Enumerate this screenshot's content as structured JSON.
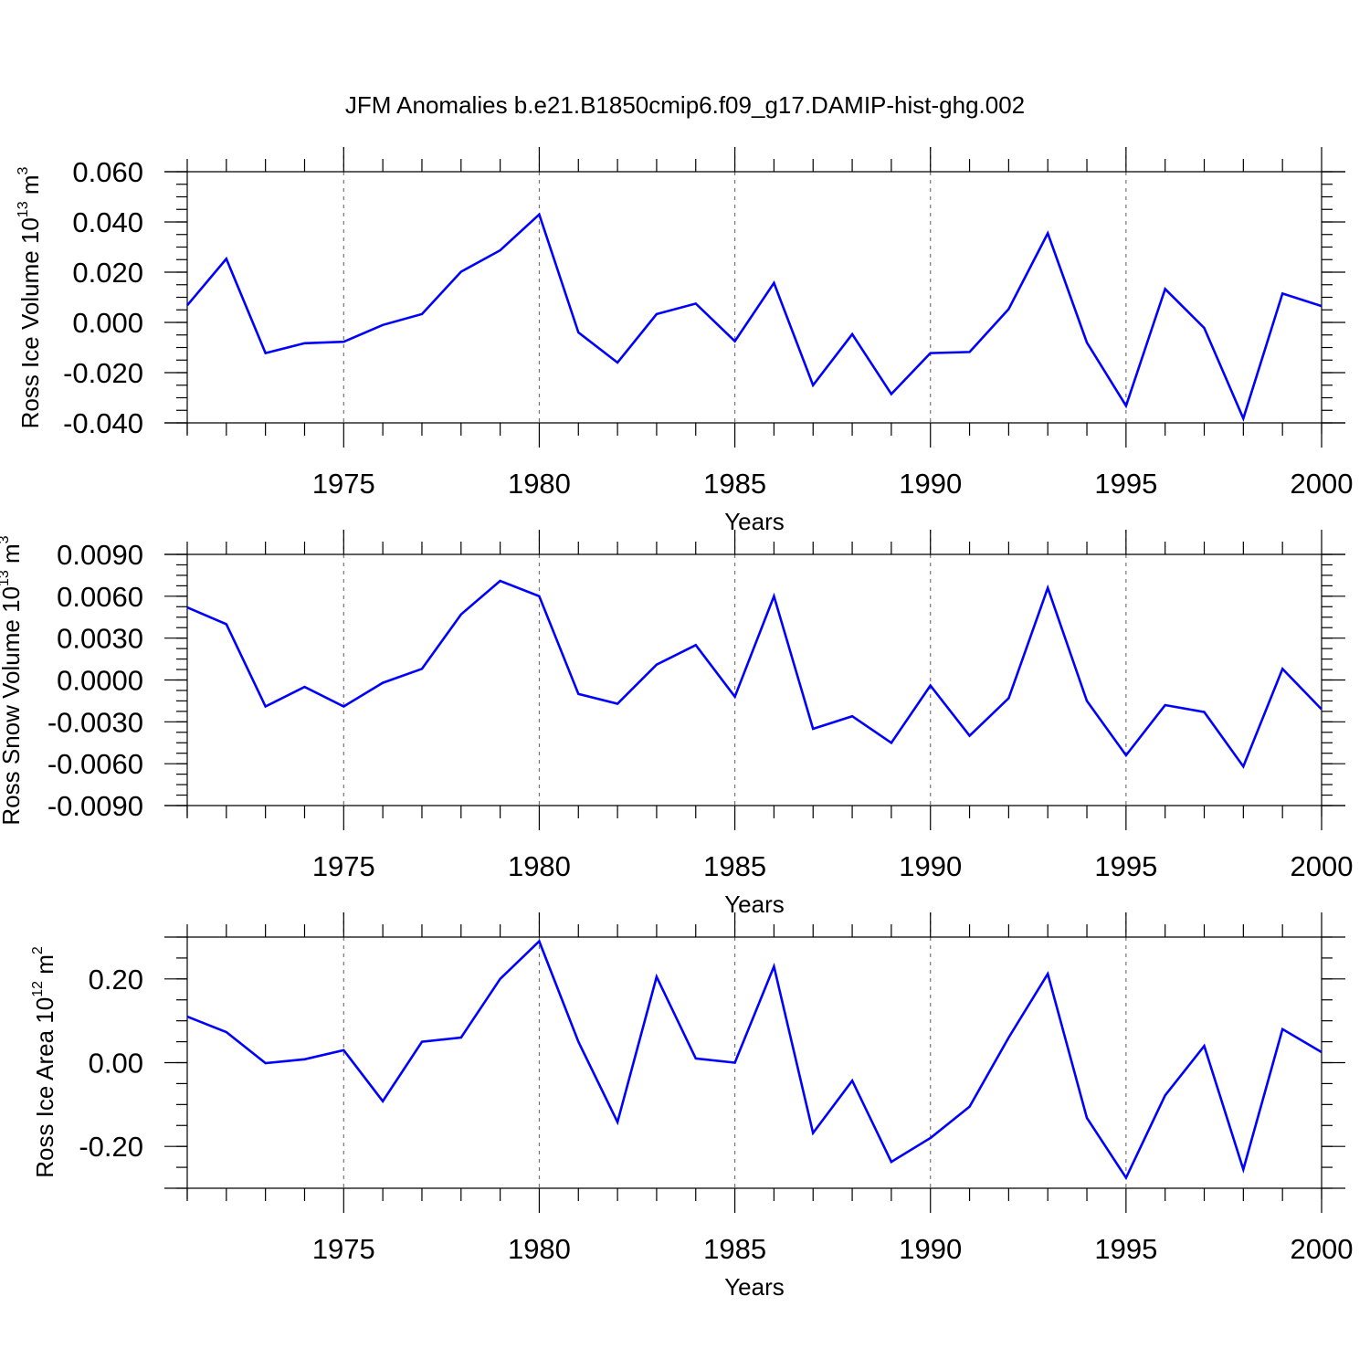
{
  "title": "JFM Anomalies b.e21.B1850cmip6.f09_g17.DAMIP-hist-ghg.002",
  "colors": {
    "line": "#0000ff",
    "grid": "#777777",
    "axis": "#000000"
  },
  "chart_data": [
    {
      "type": "line",
      "ylabel_main": "Ross Ice Volume 10",
      "ylabel_sup": "13",
      "ylabel_unit": " m",
      "ylabel_unit_sup": "3",
      "xlabel": "Years",
      "xlim": [
        1971,
        2000
      ],
      "ylim": [
        -0.04,
        0.06
      ],
      "x_ticks": [
        "1975",
        "1980",
        "1985",
        "1990",
        "1995",
        "2000"
      ],
      "y_tick_labels": [
        "0.060",
        "0.040",
        "0.020",
        "0.000",
        "-0.020",
        "-0.040"
      ],
      "y_tick_values": [
        0.06,
        0.04,
        0.02,
        0.0,
        -0.02,
        -0.04
      ],
      "grid_years": [
        1975,
        1980,
        1985,
        1990,
        1995
      ],
      "series": [
        {
          "name": "Ross Ice Volume",
          "x": [
            1971,
            1972,
            1973,
            1974,
            1975,
            1976,
            1977,
            1978,
            1979,
            1980,
            1981,
            1982,
            1983,
            1984,
            1985,
            1986,
            1987,
            1988,
            1989,
            1990,
            1991,
            1992,
            1993,
            1994,
            1995,
            1996,
            1997,
            1998,
            1999,
            2000
          ],
          "values": [
            0.0068,
            0.0253,
            -0.0122,
            -0.0083,
            -0.0077,
            -0.001,
            0.0033,
            0.0202,
            0.0287,
            0.043,
            -0.004,
            -0.016,
            0.0033,
            0.0075,
            -0.0075,
            0.0157,
            -0.025,
            -0.0047,
            -0.0285,
            -0.0122,
            -0.0118,
            0.0053,
            0.0355,
            -0.008,
            -0.0332,
            0.0133,
            -0.0022,
            -0.0382,
            0.0115,
            0.0065
          ]
        }
      ]
    },
    {
      "type": "line",
      "ylabel_main": "Ross Snow Volume 10",
      "ylabel_sup": "13",
      "ylabel_unit": " m",
      "ylabel_unit_sup": "3",
      "xlabel": "Years",
      "xlim": [
        1971,
        2000
      ],
      "ylim": [
        -0.009,
        0.009
      ],
      "x_ticks": [
        "1975",
        "1980",
        "1985",
        "1990",
        "1995",
        "2000"
      ],
      "y_tick_labels": [
        "0.0090",
        "0.0060",
        "0.0030",
        "0.0000",
        "-0.0030",
        "-0.0060",
        "-0.0090"
      ],
      "y_tick_values": [
        0.009,
        0.006,
        0.003,
        0.0,
        -0.003,
        -0.006,
        -0.009
      ],
      "grid_years": [
        1975,
        1980,
        1985,
        1990,
        1995
      ],
      "series": [
        {
          "name": "Ross Snow Volume",
          "x": [
            1971,
            1972,
            1973,
            1974,
            1975,
            1976,
            1977,
            1978,
            1979,
            1980,
            1981,
            1982,
            1983,
            1984,
            1985,
            1986,
            1987,
            1988,
            1989,
            1990,
            1991,
            1992,
            1993,
            1994,
            1995,
            1996,
            1997,
            1998,
            1999,
            2000
          ],
          "values": [
            0.0052,
            0.004,
            -0.0019,
            -0.0005,
            -0.0019,
            -0.0002,
            0.0008,
            0.0047,
            0.0071,
            0.006,
            -0.001,
            -0.0017,
            0.0011,
            0.0025,
            -0.0012,
            0.006,
            -0.0035,
            -0.0026,
            -0.0045,
            -0.0004,
            -0.004,
            -0.0013,
            0.0066,
            -0.0015,
            -0.0054,
            -0.0018,
            -0.0023,
            -0.0062,
            0.0008,
            -0.0021
          ]
        }
      ]
    },
    {
      "type": "line",
      "ylabel_main": "Ross Ice Area 10",
      "ylabel_sup": "12",
      "ylabel_unit": " m",
      "ylabel_unit_sup": "2",
      "xlabel": "Years",
      "xlim": [
        1971,
        2000
      ],
      "ylim": [
        -0.3,
        0.3
      ],
      "x_ticks": [
        "1975",
        "1980",
        "1985",
        "1990",
        "1995",
        "2000"
      ],
      "y_tick_labels": [
        "0.20",
        "0.00",
        "-0.20"
      ],
      "y_tick_values": [
        0.2,
        0.0,
        -0.2
      ],
      "grid_years": [
        1975,
        1980,
        1985,
        1990,
        1995
      ],
      "series": [
        {
          "name": "Ross Ice Area",
          "x": [
            1971,
            1972,
            1973,
            1974,
            1975,
            1976,
            1977,
            1978,
            1979,
            1980,
            1981,
            1982,
            1983,
            1984,
            1985,
            1986,
            1987,
            1988,
            1989,
            1990,
            1991,
            1992,
            1993,
            1994,
            1995,
            1996,
            1997,
            1998,
            1999,
            2000
          ],
          "values": [
            0.11,
            0.073,
            -0.001,
            0.008,
            0.03,
            -0.092,
            0.05,
            0.06,
            0.2,
            0.29,
            0.05,
            -0.142,
            0.205,
            0.01,
            0.0,
            0.23,
            -0.168,
            -0.043,
            -0.237,
            -0.18,
            -0.105,
            0.06,
            0.212,
            -0.132,
            -0.275,
            -0.078,
            0.04,
            -0.255,
            0.08,
            0.025
          ]
        }
      ]
    }
  ]
}
